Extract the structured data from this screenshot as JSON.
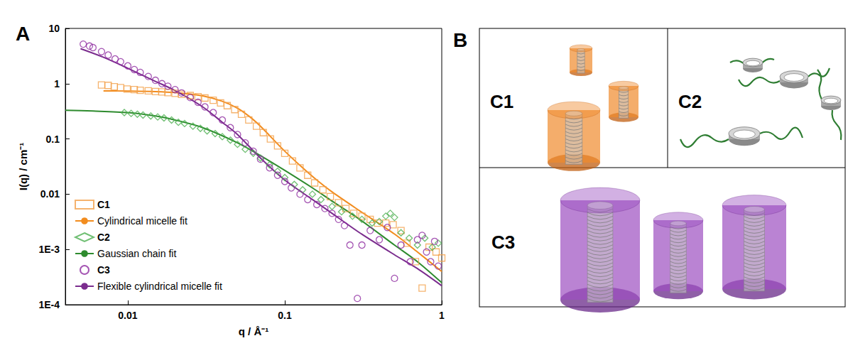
{
  "panel_labels": [
    "A",
    "B"
  ],
  "chart_data": {
    "type": "scatter",
    "x_label": "q / Å⁻¹",
    "y_label": "I(q) / cm⁻¹",
    "log": true,
    "grid": false,
    "legend": "lower left",
    "xlim": [
      0.004,
      1
    ],
    "ylim": [
      0.0001,
      10
    ],
    "xticks": [
      0.01,
      0.1,
      1
    ],
    "yticks": [
      {
        "value": 0.0001,
        "label": "1E-4"
      },
      {
        "value": 0.001,
        "label": "1E-3"
      },
      0.01,
      0.1,
      1,
      10
    ],
    "series": [
      {
        "name": "C1",
        "type": "scatter",
        "marker": "square",
        "color": "#f3a04a",
        "x": [
          0.0068,
          0.0075,
          0.0082,
          0.009,
          0.0099,
          0.011,
          0.012,
          0.0135,
          0.015,
          0.0165,
          0.018,
          0.02,
          0.022,
          0.025,
          0.028,
          0.031,
          0.035,
          0.039,
          0.043,
          0.048,
          0.053,
          0.059,
          0.066,
          0.073,
          0.081,
          0.09,
          0.1,
          0.112,
          0.125,
          0.14,
          0.155,
          0.175,
          0.195,
          0.22,
          0.245,
          0.275,
          0.31,
          0.35,
          0.39,
          0.44,
          0.49,
          0.55,
          0.6,
          0.68,
          0.75,
          0.83,
          0.92,
          1.0
        ],
        "values": [
          0.95,
          0.93,
          0.88,
          0.85,
          0.8,
          0.78,
          0.76,
          0.74,
          0.72,
          0.71,
          0.69,
          0.67,
          0.64,
          0.61,
          0.58,
          0.55,
          0.5,
          0.45,
          0.4,
          0.34,
          0.28,
          0.22,
          0.17,
          0.13,
          0.1,
          0.075,
          0.055,
          0.04,
          0.03,
          0.022,
          0.016,
          0.012,
          0.009,
          0.007,
          0.0055,
          0.0045,
          0.004,
          0.0035,
          0.003,
          0.003,
          0.0028,
          0.0022,
          0.0013,
          0.0006,
          0.0002,
          0.0011,
          0.0009,
          0.0007
        ]
      },
      {
        "name": "Cylindrical micelle fit",
        "type": "line",
        "line_style": "solid",
        "color": "#f28c1e",
        "x": [
          0.007,
          0.01,
          0.015,
          0.02,
          0.03,
          0.04,
          0.05,
          0.06,
          0.07,
          0.08,
          0.1,
          0.13,
          0.16,
          0.2,
          0.3,
          0.5,
          0.7,
          1.0
        ],
        "values": [
          0.74,
          0.735,
          0.72,
          0.69,
          0.6,
          0.48,
          0.36,
          0.25,
          0.17,
          0.115,
          0.06,
          0.03,
          0.018,
          0.011,
          0.005,
          0.0019,
          0.0009,
          0.0004
        ]
      },
      {
        "name": "C2",
        "type": "scatter",
        "marker": "diamond",
        "color": "#4caf50",
        "x": [
          0.0095,
          0.0105,
          0.0115,
          0.0125,
          0.014,
          0.0155,
          0.017,
          0.019,
          0.021,
          0.023,
          0.026,
          0.029,
          0.032,
          0.036,
          0.04,
          0.045,
          0.05,
          0.056,
          0.063,
          0.07,
          0.08,
          0.09,
          0.1,
          0.115,
          0.13,
          0.15,
          0.17,
          0.2,
          0.23,
          0.27,
          0.31,
          0.36,
          0.4,
          0.44,
          0.47,
          0.5,
          0.55,
          0.62,
          0.7,
          0.78,
          0.87,
          0.95
        ],
        "values": [
          0.3,
          0.29,
          0.28,
          0.27,
          0.26,
          0.25,
          0.24,
          0.22,
          0.2,
          0.19,
          0.17,
          0.155,
          0.14,
          0.125,
          0.11,
          0.095,
          0.08,
          0.065,
          0.055,
          0.045,
          0.034,
          0.026,
          0.02,
          0.015,
          0.012,
          0.01,
          0.008,
          0.006,
          0.0048,
          0.004,
          0.0035,
          0.003,
          0.0032,
          0.004,
          0.0045,
          0.0038,
          0.002,
          0.0016,
          0.0012,
          0.0016,
          0.0011,
          0.0013
        ]
      },
      {
        "name": "Gaussian chain fit",
        "type": "line",
        "line_style": "solid",
        "color": "#2e8b2e",
        "x": [
          0.004,
          0.006,
          0.01,
          0.015,
          0.02,
          0.03,
          0.05,
          0.07,
          0.1,
          0.15,
          0.2,
          0.3,
          0.5,
          0.7,
          1.0
        ],
        "values": [
          0.33,
          0.32,
          0.3,
          0.26,
          0.22,
          0.16,
          0.085,
          0.05,
          0.027,
          0.013,
          0.0075,
          0.0035,
          0.0012,
          0.0006,
          0.00025
        ]
      },
      {
        "name": "C3",
        "type": "scatter",
        "marker": "circle",
        "color": "#8e2ca0",
        "x": [
          0.0052,
          0.0057,
          0.006,
          0.0068,
          0.0075,
          0.0083,
          0.009,
          0.01,
          0.011,
          0.012,
          0.0135,
          0.015,
          0.0165,
          0.018,
          0.02,
          0.022,
          0.025,
          0.028,
          0.031,
          0.035,
          0.04,
          0.045,
          0.05,
          0.056,
          0.063,
          0.07,
          0.08,
          0.09,
          0.1,
          0.11,
          0.125,
          0.14,
          0.16,
          0.18,
          0.2,
          0.22,
          0.24,
          0.26,
          0.29,
          0.31,
          0.35,
          0.4,
          0.45,
          0.5,
          0.55,
          0.63,
          0.7,
          0.75,
          0.8,
          0.85,
          0.9,
          0.95
        ],
        "values": [
          5.2,
          4.8,
          4.5,
          3.8,
          3.3,
          2.8,
          2.5,
          2.1,
          1.8,
          1.6,
          1.35,
          1.15,
          1.0,
          0.9,
          0.78,
          0.68,
          0.56,
          0.46,
          0.38,
          0.3,
          0.22,
          0.16,
          0.12,
          0.085,
          0.06,
          0.043,
          0.03,
          0.022,
          0.017,
          0.013,
          0.01,
          0.008,
          0.0065,
          0.0055,
          0.0045,
          0.0035,
          0.0027,
          0.0012,
          0.00013,
          0.0012,
          0.0022,
          0.0015,
          0.0025,
          0.0003,
          0.0012,
          0.0006,
          0.0015,
          0.0018,
          0.0009,
          0.0006,
          0.0014,
          0.0005
        ]
      },
      {
        "name": "Flexible cylindrical micelle fit",
        "type": "line",
        "line_style": "solid",
        "color": "#7b2d8e",
        "x": [
          0.005,
          0.007,
          0.01,
          0.015,
          0.02,
          0.03,
          0.04,
          0.05,
          0.07,
          0.1,
          0.15,
          0.2,
          0.3,
          0.5,
          0.7,
          1.0
        ],
        "values": [
          4.3,
          3.0,
          1.9,
          1.1,
          0.75,
          0.38,
          0.2,
          0.12,
          0.045,
          0.018,
          0.008,
          0.0045,
          0.002,
          0.0008,
          0.00045,
          0.00022
        ]
      }
    ]
  },
  "diagram": {
    "labels": [
      "C1",
      "C2",
      "C3"
    ]
  }
}
